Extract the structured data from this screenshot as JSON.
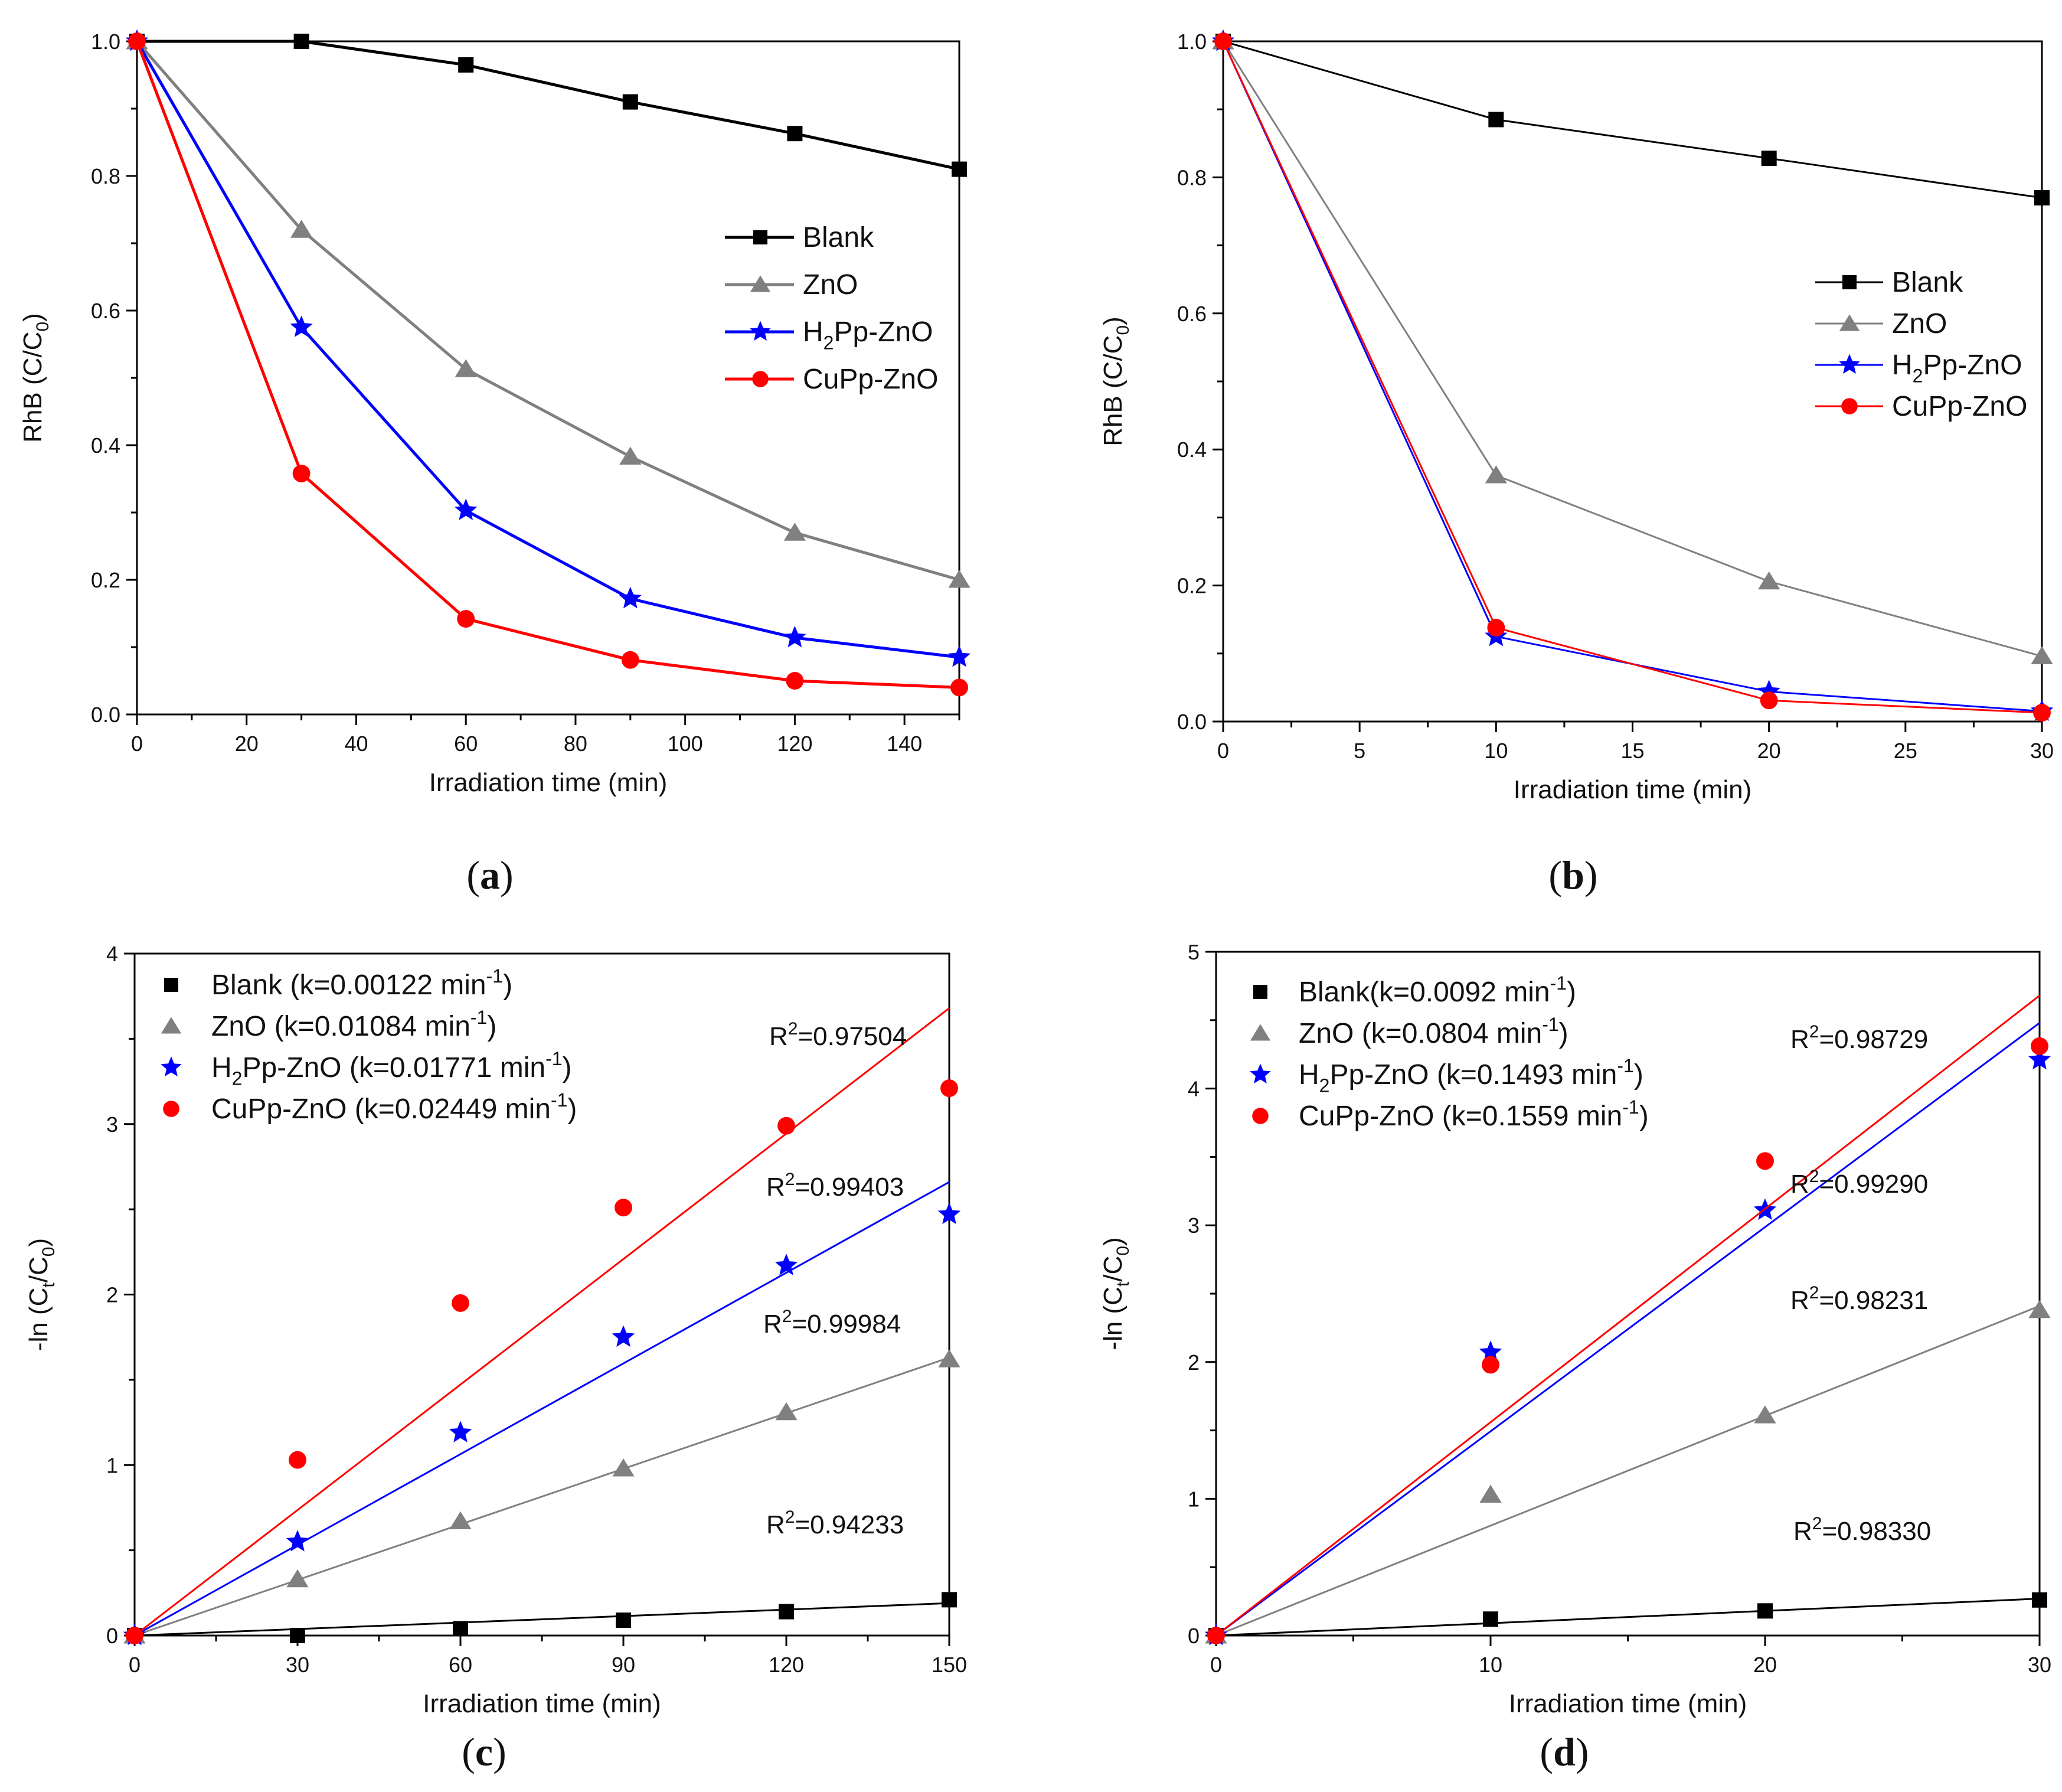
{
  "chart_data": [
    {
      "id": "a",
      "type": "line",
      "caption": {
        "open": "(",
        "letter": "a",
        "close": ")"
      },
      "xlabel": "Irradiation time (min)",
      "ylabel": {
        "main": "RhB (C/C",
        "sub": "0",
        "end": ")"
      },
      "xlim": [
        0,
        150
      ],
      "ylim": [
        0,
        1.0
      ],
      "xticks": [
        0,
        20,
        40,
        60,
        80,
        100,
        120,
        140
      ],
      "yticks": [
        0.0,
        0.2,
        0.4,
        0.6,
        0.8,
        1.0
      ],
      "ytick_labels": [
        "0.0",
        "0.2",
        "0.4",
        "0.6",
        "0.8",
        "1.0"
      ],
      "legend_position": "center-right",
      "x": [
        0,
        30,
        60,
        90,
        120,
        150
      ],
      "series": [
        {
          "name": "Blank",
          "label": [
            {
              "t": "Blank"
            }
          ],
          "color": "#000000",
          "marker": "square",
          "values": [
            1.0,
            1.0,
            0.965,
            0.91,
            0.863,
            0.81
          ]
        },
        {
          "name": "ZnO",
          "label": [
            {
              "t": "ZnO"
            }
          ],
          "color": "#808080",
          "marker": "triangle",
          "values": [
            1.0,
            0.72,
            0.513,
            0.383,
            0.27,
            0.2
          ]
        },
        {
          "name": "H2Pp-ZnO",
          "label": [
            {
              "t": "H"
            },
            {
              "t": "2",
              "sub": true
            },
            {
              "t": "Pp-ZnO"
            }
          ],
          "color": "#0000ff",
          "marker": "star",
          "values": [
            1.0,
            0.575,
            0.303,
            0.172,
            0.114,
            0.085
          ]
        },
        {
          "name": "CuPp-ZnO",
          "label": [
            {
              "t": "CuPp-ZnO"
            }
          ],
          "color": "#ff0000",
          "marker": "circle",
          "values": [
            1.0,
            0.358,
            0.142,
            0.081,
            0.05,
            0.04
          ]
        }
      ]
    },
    {
      "id": "b",
      "type": "line",
      "caption": {
        "open": "(",
        "letter": "b",
        "close": ")"
      },
      "xlabel": "Irradiation time (min)",
      "ylabel": {
        "main": "RhB (C/C",
        "sub": "0",
        "end": ")"
      },
      "xlim": [
        0,
        30
      ],
      "ylim": [
        0,
        1.0
      ],
      "xticks": [
        0,
        5,
        10,
        15,
        20,
        25,
        30
      ],
      "yticks": [
        0.0,
        0.2,
        0.4,
        0.6,
        0.8,
        1.0
      ],
      "ytick_labels": [
        "0.0",
        "0.2",
        "0.4",
        "0.6",
        "0.8",
        "1.0"
      ],
      "legend_position": "center-right",
      "x": [
        0,
        10,
        20,
        30
      ],
      "series": [
        {
          "name": "Blank",
          "label": [
            {
              "t": "Blank"
            }
          ],
          "color": "#000000",
          "marker": "square",
          "values": [
            1.0,
            0.885,
            0.828,
            0.77
          ]
        },
        {
          "name": "ZnO",
          "label": [
            {
              "t": "ZnO"
            }
          ],
          "color": "#808080",
          "marker": "triangle",
          "values": [
            1.0,
            0.362,
            0.206,
            0.096
          ]
        },
        {
          "name": "H2Pp-ZnO",
          "label": [
            {
              "t": "H"
            },
            {
              "t": "2",
              "sub": true
            },
            {
              "t": "Pp-ZnO"
            }
          ],
          "color": "#0000ff",
          "marker": "star",
          "values": [
            1.0,
            0.125,
            0.044,
            0.015
          ]
        },
        {
          "name": "CuPp-ZnO",
          "label": [
            {
              "t": "CuPp-ZnO"
            }
          ],
          "color": "#ff0000",
          "marker": "circle",
          "values": [
            1.0,
            0.138,
            0.031,
            0.013
          ]
        }
      ]
    },
    {
      "id": "c",
      "type": "scatter",
      "caption": {
        "open": "(",
        "letter": "c",
        "close": ")"
      },
      "xlabel": "Irradiation time (min)",
      "ylabel": {
        "main": "-ln (C",
        "sub": "t",
        "mid": "/C",
        "sub2": "0",
        "end": ")"
      },
      "xlim": [
        0,
        150
      ],
      "ylim": [
        0,
        4
      ],
      "xticks": [
        0,
        30,
        60,
        90,
        120,
        150
      ],
      "yticks": [
        0,
        1,
        2,
        3,
        4
      ],
      "ytick_labels": [
        "0",
        "1",
        "2",
        "3",
        "4"
      ],
      "legend_position": "top-left",
      "x": [
        0,
        30,
        60,
        90,
        120,
        150
      ],
      "series": [
        {
          "name": "Blank",
          "label": [
            {
              "t": "Blank (k=0.00122 min"
            },
            {
              "t": "-1",
              "sup": true
            },
            {
              "t": ")"
            }
          ],
          "color": "#000000",
          "marker": "square",
          "values": [
            0,
            0.0,
            0.04,
            0.09,
            0.14,
            0.21
          ],
          "fit_slope": 0.00122,
          "fit_end": 0.19,
          "r2": "0.94233"
        },
        {
          "name": "ZnO",
          "label": [
            {
              "t": "ZnO (k=0.01084 min"
            },
            {
              "t": "-1",
              "sup": true
            },
            {
              "t": ")"
            }
          ],
          "color": "#808080",
          "marker": "triangle",
          "values": [
            0,
            0.33,
            0.67,
            0.98,
            1.31,
            1.62
          ],
          "fit_slope": 0.01084,
          "fit_end": 1.63,
          "r2": "0.99984"
        },
        {
          "name": "H2Pp-ZnO",
          "label": [
            {
              "t": "H"
            },
            {
              "t": "2",
              "sub": true
            },
            {
              "t": "Pp-ZnO (k=0.01771 min"
            },
            {
              "t": "-1",
              "sup": true
            },
            {
              "t": ")"
            }
          ],
          "color": "#0000ff",
          "marker": "star",
          "values": [
            0,
            0.55,
            1.19,
            1.75,
            2.17,
            2.47
          ],
          "fit_slope": 0.01771,
          "fit_end": 2.66,
          "r2": "0.99403"
        },
        {
          "name": "CuPp-ZnO",
          "label": [
            {
              "t": "CuPp-ZnO (k=0.02449 min"
            },
            {
              "t": "-1",
              "sup": true
            },
            {
              "t": ")"
            }
          ],
          "color": "#ff0000",
          "marker": "circle",
          "values": [
            0,
            1.03,
            1.95,
            2.51,
            2.99,
            3.21
          ],
          "fit_slope": 0.02449,
          "fit_end": 3.68,
          "r2": "0.97504"
        }
      ]
    },
    {
      "id": "d",
      "type": "scatter",
      "caption": {
        "open": "(",
        "letter": "d",
        "close": ")"
      },
      "xlabel": "Irradiation time (min)",
      "ylabel": {
        "main": "-ln (C",
        "sub": "t",
        "mid": "/C",
        "sub2": "0",
        "end": ")"
      },
      "xlim": [
        0,
        30
      ],
      "ylim": [
        0,
        5
      ],
      "xticks": [
        0,
        10,
        20,
        30
      ],
      "yticks": [
        0,
        1,
        2,
        3,
        4,
        5
      ],
      "ytick_labels": [
        "0",
        "1",
        "2",
        "3",
        "4",
        "5"
      ],
      "legend_position": "top-left",
      "x": [
        0,
        10,
        20,
        30
      ],
      "series": [
        {
          "name": "Blank",
          "label": [
            {
              "t": "Blank(k=0.0092 min"
            },
            {
              "t": "-1",
              "sup": true
            },
            {
              "t": ")"
            }
          ],
          "color": "#000000",
          "marker": "square",
          "values": [
            0,
            0.12,
            0.18,
            0.26
          ],
          "fit_slope": 0.0092,
          "fit_end": 0.27,
          "r2": "0.98330"
        },
        {
          "name": "ZnO",
          "label": [
            {
              "t": "ZnO (k=0.0804 min"
            },
            {
              "t": "-1",
              "sup": true
            },
            {
              "t": ")"
            }
          ],
          "color": "#808080",
          "marker": "triangle",
          "values": [
            0,
            1.03,
            1.61,
            2.38
          ],
          "fit_slope": 0.0804,
          "fit_end": 2.41,
          "r2": "0.98231"
        },
        {
          "name": "H2Pp-ZnO",
          "label": [
            {
              "t": "H"
            },
            {
              "t": "2",
              "sub": true
            },
            {
              "t": "Pp-ZnO (k=0.1493 min"
            },
            {
              "t": "-1",
              "sup": true
            },
            {
              "t": ")"
            }
          ],
          "color": "#0000ff",
          "marker": "star",
          "values": [
            0,
            2.07,
            3.11,
            4.21
          ],
          "fit_slope": 0.1493,
          "fit_end": 4.48,
          "r2": "0.99290"
        },
        {
          "name": "CuPp-ZnO",
          "label": [
            {
              "t": "CuPp-ZnO (k=0.1559 min"
            },
            {
              "t": "-1",
              "sup": true
            },
            {
              "t": ")"
            }
          ],
          "color": "#ff0000",
          "marker": "circle",
          "values": [
            0,
            1.98,
            3.47,
            4.31
          ],
          "fit_slope": 0.1559,
          "fit_end": 4.68,
          "r2": "0.98729"
        }
      ]
    }
  ]
}
